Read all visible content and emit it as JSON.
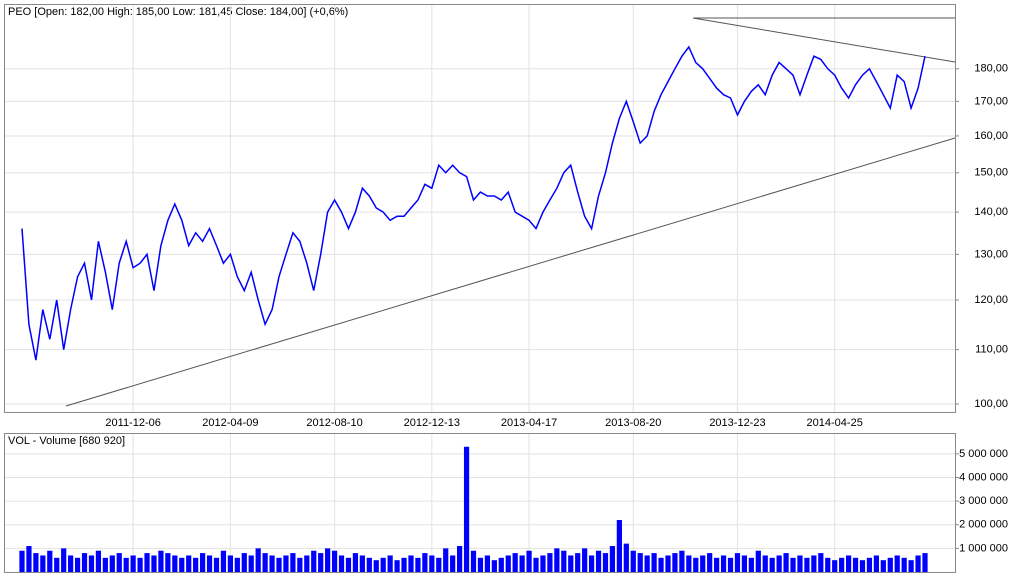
{
  "chart_data": [
    {
      "type": "line",
      "title": "PEO [Open: 182,00  High: 185,00  Low: 181,45  Close: 184,00] (+0,6%)",
      "log_scale": true,
      "grid": true,
      "categories": [
        null,
        null,
        null,
        null,
        null,
        null,
        null,
        null,
        null,
        null,
        null,
        null,
        null,
        null,
        null,
        null,
        "2011-12-06",
        null,
        null,
        null,
        null,
        null,
        null,
        null,
        null,
        null,
        null,
        null,
        null,
        null,
        "2012-04-09",
        null,
        null,
        null,
        null,
        null,
        null,
        null,
        null,
        null,
        null,
        null,
        null,
        null,
        null,
        "2012-08-10",
        null,
        null,
        null,
        null,
        null,
        null,
        null,
        null,
        null,
        null,
        null,
        null,
        null,
        "2012-12-13",
        null,
        null,
        null,
        null,
        null,
        null,
        null,
        null,
        null,
        null,
        null,
        null,
        null,
        "2013-04-17",
        null,
        null,
        null,
        null,
        null,
        null,
        null,
        null,
        null,
        null,
        null,
        null,
        null,
        null,
        "2013-08-20",
        null,
        null,
        null,
        null,
        null,
        null,
        null,
        null,
        null,
        null,
        null,
        null,
        null,
        null,
        "2013-12-23",
        null,
        null,
        null,
        null,
        null,
        null,
        null,
        null,
        null,
        null,
        null,
        null,
        null,
        "2014-04-25",
        null,
        null,
        null,
        null,
        null,
        null,
        null,
        null,
        null,
        null,
        null,
        null,
        null
      ],
      "series": [
        {
          "name": "PEO",
          "color": "#0000ff",
          "values": [
            136,
            115,
            108,
            118,
            112,
            120,
            110,
            118,
            125,
            128,
            120,
            133,
            126,
            118,
            128,
            133,
            127,
            128,
            130,
            122,
            132,
            138,
            142,
            138,
            132,
            135,
            133,
            136,
            132,
            128,
            130,
            125,
            122,
            126,
            120,
            115,
            118,
            125,
            130,
            135,
            133,
            128,
            122,
            130,
            140,
            143,
            140,
            136,
            140,
            146,
            144,
            141,
            140,
            138,
            139,
            139,
            141,
            143,
            147,
            146,
            152,
            150,
            152,
            150,
            149,
            143,
            145,
            144,
            144,
            143,
            145,
            140,
            139,
            138,
            136,
            140,
            143,
            146,
            150,
            152,
            145,
            139,
            136,
            144,
            150,
            158,
            165,
            170,
            164,
            158,
            160,
            167,
            172,
            176,
            180,
            184,
            187,
            182,
            180,
            177,
            174,
            172,
            171,
            166,
            170,
            173,
            175,
            172,
            178,
            182,
            180,
            178,
            172,
            178,
            184,
            183,
            180,
            178,
            174,
            171,
            175,
            178,
            180,
            176,
            172,
            168,
            178,
            176,
            168,
            174,
            184
          ]
        }
      ],
      "ylim": [
        98.6,
        201.3
      ],
      "yticks": [
        {
          "value": 100,
          "label": "100,00"
        },
        {
          "value": 110,
          "label": "110,00"
        },
        {
          "value": 120,
          "label": "120,00"
        },
        {
          "value": 130,
          "label": "130,00"
        },
        {
          "value": 140,
          "label": "140,00"
        },
        {
          "value": 150,
          "label": "150,00"
        },
        {
          "value": 160,
          "label": "160,00"
        },
        {
          "value": 170,
          "label": "170,00"
        },
        {
          "value": 180,
          "label": "180,00"
        }
      ]
    },
    {
      "type": "bar",
      "title": "VOL - Volume [680 920]",
      "grid": true,
      "color": "#0000ff",
      "values": [
        900000,
        1100000,
        800000,
        700000,
        900000,
        600000,
        1000000,
        700000,
        600000,
        800000,
        700000,
        900000,
        600000,
        700000,
        800000,
        600000,
        700000,
        600000,
        800000,
        700000,
        900000,
        800000,
        700000,
        600000,
        700000,
        600000,
        800000,
        700000,
        600000,
        900000,
        700000,
        600000,
        800000,
        700000,
        1000000,
        800000,
        700000,
        600000,
        700000,
        800000,
        600000,
        700000,
        900000,
        800000,
        1000000,
        900000,
        700000,
        600000,
        800000,
        700000,
        600000,
        500000,
        600000,
        700000,
        500000,
        600000,
        700000,
        600000,
        800000,
        700000,
        600000,
        1000000,
        700000,
        1100000,
        5300000,
        900000,
        600000,
        700000,
        500000,
        600000,
        700000,
        800000,
        700000,
        900000,
        600000,
        700000,
        800000,
        1000000,
        900000,
        700000,
        800000,
        1000000,
        700000,
        900000,
        800000,
        1100000,
        2200000,
        1200000,
        900000,
        800000,
        700000,
        800000,
        600000,
        700000,
        800000,
        900000,
        700000,
        600000,
        700000,
        800000,
        600000,
        700000,
        600000,
        800000,
        700000,
        600000,
        900000,
        700000,
        600000,
        700000,
        800000,
        600000,
        700000,
        600000,
        700000,
        800000,
        600000,
        500000,
        600000,
        700000,
        600000,
        500000,
        600000,
        700000,
        500000,
        600000,
        700000,
        600000,
        500000,
        700000,
        800000
      ],
      "ylim": [
        0,
        5840000
      ],
      "yticks": [
        {
          "value": 1000000,
          "label": "1 000 000"
        },
        {
          "value": 2000000,
          "label": "2 000 000"
        },
        {
          "value": 3000000,
          "label": "3 000 000"
        },
        {
          "value": 4000000,
          "label": "4 000 000"
        },
        {
          "value": 5000000,
          "label": "5 000 000"
        }
      ]
    }
  ]
}
